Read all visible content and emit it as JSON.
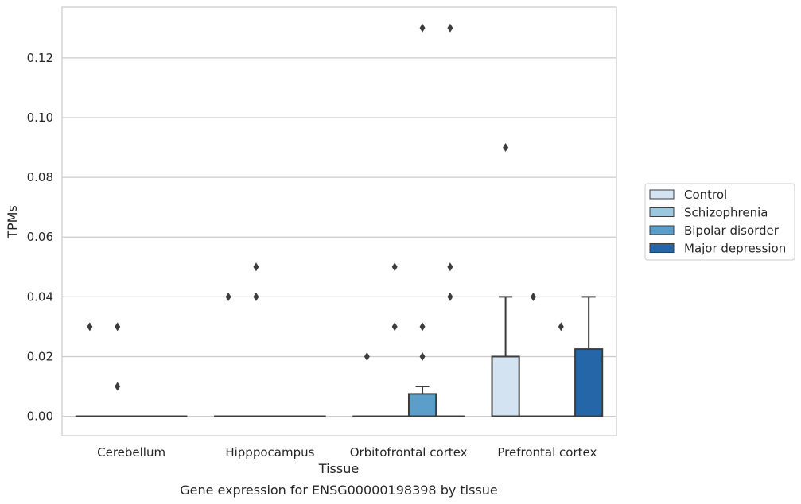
{
  "chart_data": {
    "type": "box",
    "title": "Gene expression for ENSG00000198398 by tissue",
    "xlabel": "Tissue",
    "ylabel": "TPMs",
    "ylim": [
      -0.0065,
      0.137
    ],
    "yticks": [
      0.0,
      0.02,
      0.04,
      0.06,
      0.08,
      0.1,
      0.12
    ],
    "yticklabels": [
      "0.00",
      "0.02",
      "0.04",
      "0.06",
      "0.08",
      "0.10",
      "0.12"
    ],
    "grid": "horizontal",
    "legend_placement": "right",
    "categories": [
      "Cerebellum",
      "Hipppocampus",
      "Orbitofrontal cortex",
      "Prefrontal cortex"
    ],
    "series": [
      {
        "name": "Control",
        "color": "#d3e3f2",
        "boxes": [
          {
            "q1": 0,
            "median": 0,
            "q3": 0,
            "whisker_low": 0,
            "whisker_high": 0,
            "outliers": [
              0.03
            ]
          },
          {
            "q1": 0,
            "median": 0,
            "q3": 0,
            "whisker_low": 0,
            "whisker_high": 0,
            "outliers": [
              0.04
            ]
          },
          {
            "q1": 0,
            "median": 0,
            "q3": 0,
            "whisker_low": 0,
            "whisker_high": 0,
            "outliers": [
              0.02
            ]
          },
          {
            "q1": 0,
            "median": 0,
            "q3": 0.02,
            "whisker_low": 0,
            "whisker_high": 0.04,
            "outliers": [
              0.09
            ]
          }
        ]
      },
      {
        "name": "Schizophrenia",
        "color": "#9ac8e0",
        "boxes": [
          {
            "q1": 0,
            "median": 0,
            "q3": 0,
            "whisker_low": 0,
            "whisker_high": 0,
            "outliers": [
              0.03,
              0.01
            ]
          },
          {
            "q1": 0,
            "median": 0,
            "q3": 0,
            "whisker_low": 0,
            "whisker_high": 0,
            "outliers": [
              0.05,
              0.04
            ]
          },
          {
            "q1": 0,
            "median": 0,
            "q3": 0,
            "whisker_low": 0,
            "whisker_high": 0,
            "outliers": [
              0.05,
              0.03
            ]
          },
          {
            "q1": 0,
            "median": 0,
            "q3": 0,
            "whisker_low": 0,
            "whisker_high": 0,
            "outliers": [
              0.04
            ]
          }
        ]
      },
      {
        "name": "Bipolar disorder",
        "color": "#5a9ec9",
        "boxes": [
          {
            "q1": 0,
            "median": 0,
            "q3": 0,
            "whisker_low": 0,
            "whisker_high": 0,
            "outliers": []
          },
          {
            "q1": 0,
            "median": 0,
            "q3": 0,
            "whisker_low": 0,
            "whisker_high": 0,
            "outliers": []
          },
          {
            "q1": 0,
            "median": 0,
            "q3": 0.0075,
            "whisker_low": 0,
            "whisker_high": 0.01,
            "outliers": [
              0.13,
              0.03,
              0.02
            ]
          },
          {
            "q1": 0,
            "median": 0,
            "q3": 0,
            "whisker_low": 0,
            "whisker_high": 0,
            "outliers": [
              0.03
            ]
          }
        ]
      },
      {
        "name": "Major depression",
        "color": "#2466a8",
        "boxes": [
          {
            "q1": 0,
            "median": 0,
            "q3": 0,
            "whisker_low": 0,
            "whisker_high": 0,
            "outliers": []
          },
          {
            "q1": 0,
            "median": 0,
            "q3": 0,
            "whisker_low": 0,
            "whisker_high": 0,
            "outliers": []
          },
          {
            "q1": 0,
            "median": 0,
            "q3": 0,
            "whisker_low": 0,
            "whisker_high": 0,
            "outliers": [
              0.13,
              0.05,
              0.04
            ]
          },
          {
            "q1": 0,
            "median": 0,
            "q3": 0.0225,
            "whisker_low": 0,
            "whisker_high": 0.04,
            "outliers": []
          }
        ]
      }
    ]
  }
}
